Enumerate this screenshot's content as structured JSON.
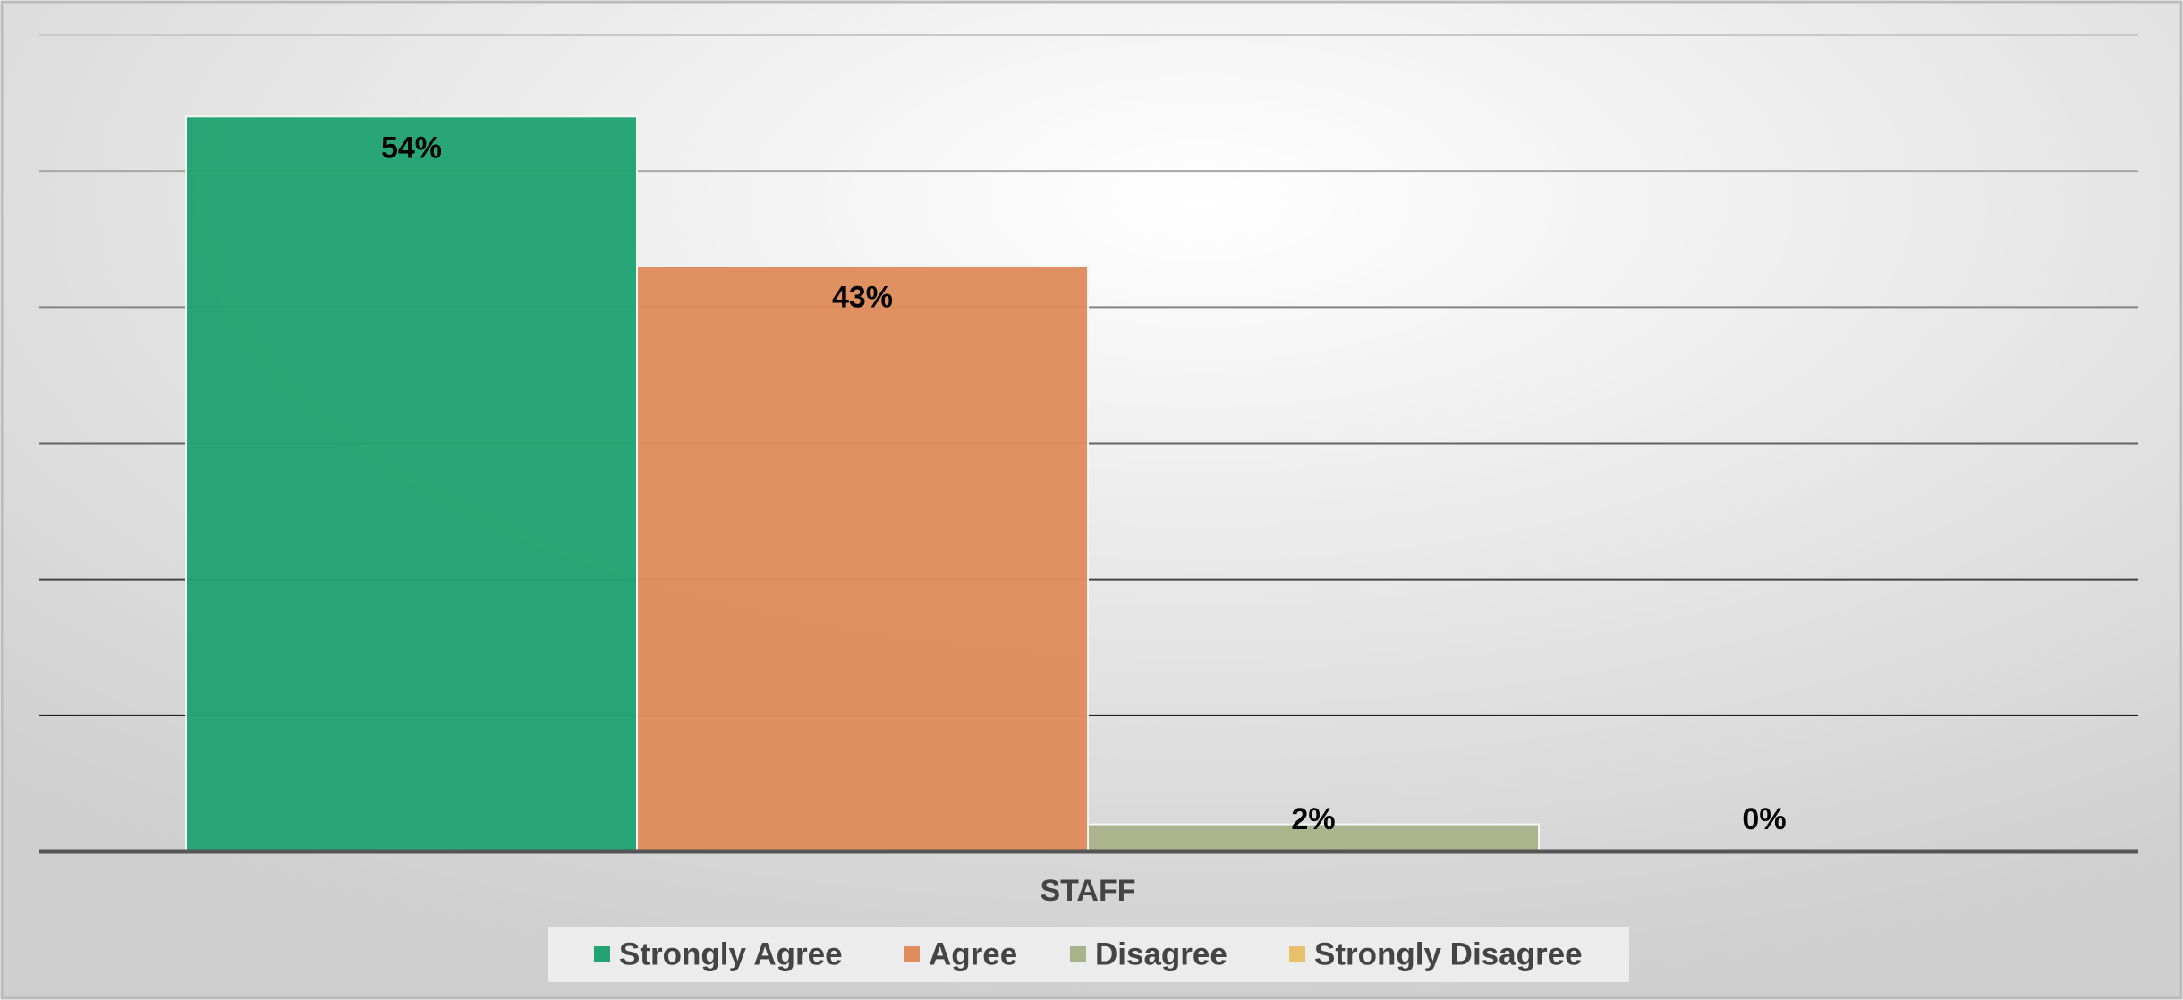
{
  "chart_data": {
    "type": "bar",
    "categories": [
      "STAFF"
    ],
    "series": [
      {
        "name": "Strongly Agree",
        "color": "#21a373",
        "values": [
          54
        ],
        "value_labels": [
          "54%"
        ]
      },
      {
        "name": "Agree",
        "color": "#e08c5c",
        "values": [
          43
        ],
        "value_labels": [
          "43%"
        ]
      },
      {
        "name": "Disagree",
        "color": "#a9b38a",
        "values": [
          2
        ],
        "value_labels": [
          "2%"
        ]
      },
      {
        "name": "Strongly Disagree",
        "color": "#e6c06a",
        "values": [
          0
        ],
        "value_labels": [
          "0%"
        ]
      }
    ],
    "ylim": [
      0,
      60
    ],
    "yticks": [
      0,
      10,
      20,
      30,
      40,
      50,
      60
    ],
    "grid": true,
    "legend": "bottom"
  }
}
